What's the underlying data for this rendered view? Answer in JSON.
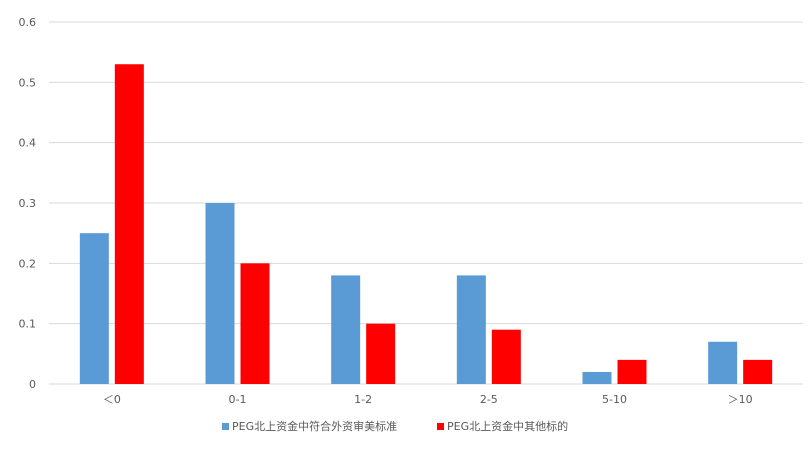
{
  "chart_data": {
    "type": "bar",
    "categories": [
      "＜0",
      "0-1",
      "1-2",
      "2-5",
      "5-10",
      "＞10"
    ],
    "series": [
      {
        "name": "PEG北上资金中符合外资审美标准",
        "color": "#5b9bd5",
        "values": [
          0.25,
          0.3,
          0.18,
          0.18,
          0.02,
          0.07
        ]
      },
      {
        "name": "PEG北上资金中其他标的",
        "color": "#ff0000",
        "values": [
          0.53,
          0.2,
          0.1,
          0.09,
          0.04,
          0.04
        ]
      }
    ],
    "yticks": [
      "0",
      "0.1",
      "0.2",
      "0.3",
      "0.4",
      "0.5",
      "0.6"
    ],
    "ylim": [
      0,
      0.6
    ],
    "grid": true,
    "gridColor": "#d9d9d9",
    "legend_position": "bottom"
  }
}
